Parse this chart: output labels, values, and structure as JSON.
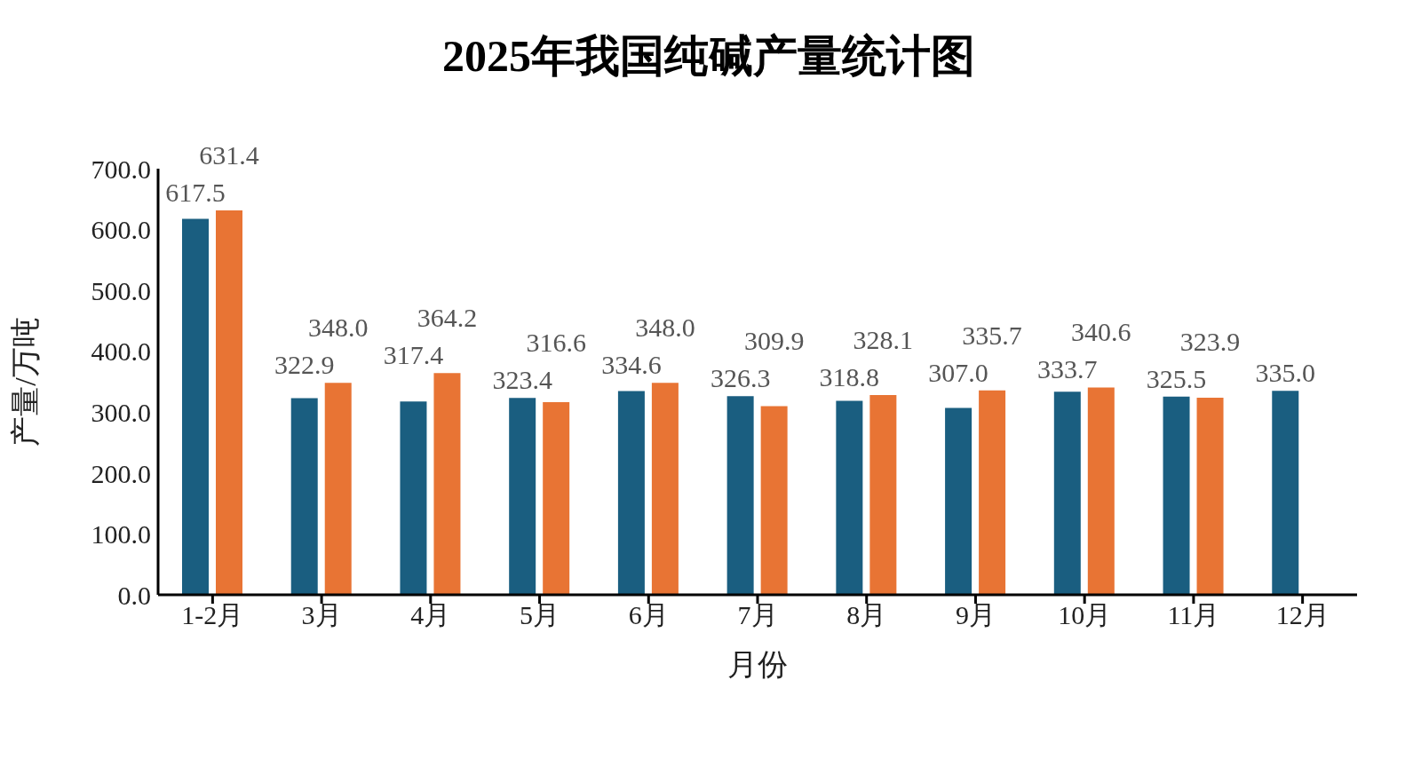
{
  "chart_data": {
    "type": "bar",
    "title": "2025年我国纯碱产量统计图",
    "xlabel": "月份",
    "ylabel": "产量/万吨",
    "categories": [
      "1-2月",
      "3月",
      "4月",
      "5月",
      "6月",
      "7月",
      "8月",
      "9月",
      "10月",
      "11月",
      "12月"
    ],
    "series": [
      {
        "color": "#1a5e80",
        "values": [
          617.5,
          322.9,
          317.4,
          323.4,
          334.6,
          326.3,
          318.8,
          307.0,
          333.7,
          325.5,
          335.0
        ],
        "value_labels": [
          "617.5",
          "322.9",
          "317.4",
          "323.4",
          "334.6",
          "326.3",
          "318.8",
          "307.0",
          "333.7",
          "325.5",
          "335.0"
        ]
      },
      {
        "color": "#e87434",
        "values": [
          631.4,
          348.0,
          364.2,
          316.6,
          348.0,
          309.9,
          328.1,
          335.7,
          340.6,
          323.9,
          null
        ],
        "value_labels": [
          "631.4",
          "348.0",
          "364.2",
          "316.6",
          "348.0",
          "309.9",
          "328.1",
          "335.7",
          "340.6",
          "323.9",
          null
        ]
      }
    ],
    "ylim": [
      0,
      700
    ],
    "yticks": [
      {
        "value": 0,
        "label": "0.0"
      },
      {
        "value": 100,
        "label": "100.0"
      },
      {
        "value": 200,
        "label": "200.0"
      },
      {
        "value": 300,
        "label": "300.0"
      },
      {
        "value": 400,
        "label": "400.0"
      },
      {
        "value": 500,
        "label": "500.0"
      },
      {
        "value": 600,
        "label": "600.0"
      },
      {
        "value": 700,
        "label": "700.0"
      }
    ],
    "grid": false,
    "legend": false
  }
}
